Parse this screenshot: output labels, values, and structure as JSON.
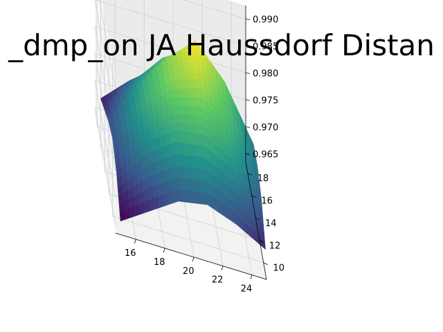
{
  "figure": {
    "title": "_dmp_on JA Haussdorf Distan"
  },
  "chart_data": {
    "type": "surface3d",
    "title": "_dmp_on JA Haussdorf Distan",
    "colormap": "viridis",
    "colormap_stops": [
      "#440154",
      "#3b528b",
      "#21918c",
      "#5ec962",
      "#fde725"
    ],
    "pane_color": "#f2f2f2",
    "grid": true,
    "x": {
      "ticks": [
        16,
        18,
        20,
        22,
        24
      ],
      "range": [
        14.6,
        25
      ],
      "data_range": [
        15,
        25
      ]
    },
    "y": {
      "ticks": [
        10,
        12,
        14,
        16,
        18
      ],
      "range": [
        8.5,
        19
      ],
      "data_range": [
        9,
        19
      ]
    },
    "z": {
      "ticks": [
        0.965,
        0.97,
        0.975,
        0.98,
        0.985,
        0.99
      ],
      "tick_labels": [
        "0.965",
        "0.970",
        "0.975",
        "0.980",
        "0.985",
        "0.990"
      ],
      "range": [
        0.9635,
        0.9925
      ]
    },
    "surface": {
      "x_values": [
        15,
        17,
        19,
        21,
        23,
        25
      ],
      "y_values": [
        9,
        11,
        13,
        15,
        17,
        19
      ],
      "z_grid": [
        [
          0.965,
          0.9685,
          0.972,
          0.973,
          0.971,
          0.968
        ],
        [
          0.97,
          0.977,
          0.981,
          0.982,
          0.979,
          0.973
        ],
        [
          0.972,
          0.98,
          0.986,
          0.988,
          0.983,
          0.975
        ],
        [
          0.971,
          0.979,
          0.986,
          0.991,
          0.985,
          0.975
        ],
        [
          0.969,
          0.976,
          0.982,
          0.985,
          0.981,
          0.972
        ],
        [
          0.967,
          0.972,
          0.976,
          0.978,
          0.974,
          0.969
        ]
      ]
    }
  }
}
